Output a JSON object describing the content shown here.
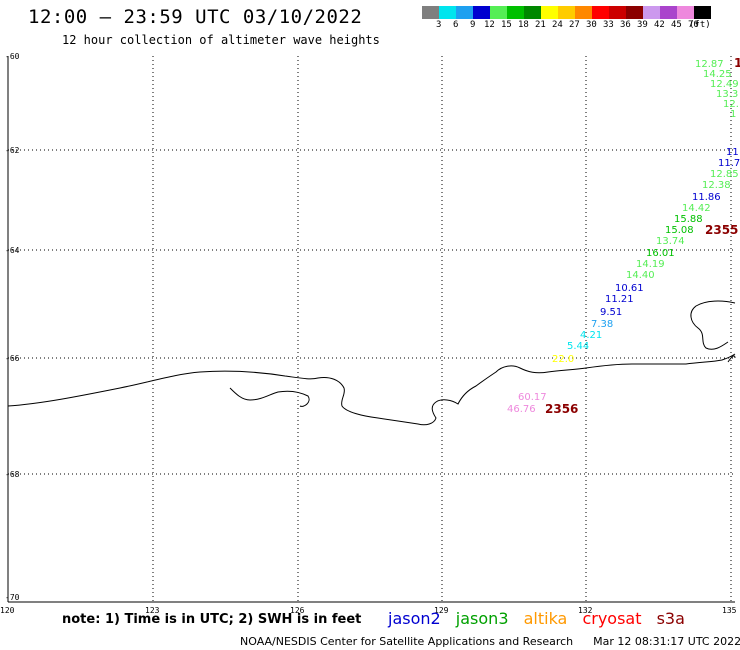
{
  "title": "12:00 – 23:59 UTC 03/10/2022",
  "subtitle": "12 hour collection of altimeter wave heights",
  "legend": {
    "unit_label": "(ft)",
    "bins": [
      {
        "label": "3",
        "color": "#7f7f7f"
      },
      {
        "label": "6",
        "color": "#00e5ee"
      },
      {
        "label": "9",
        "color": "#1ea0f0"
      },
      {
        "label": "12",
        "color": "#0000d0"
      },
      {
        "label": "15",
        "color": "#55ee55"
      },
      {
        "label": "18",
        "color": "#00c000"
      },
      {
        "label": "21",
        "color": "#008800"
      },
      {
        "label": "24",
        "color": "#ffff00"
      },
      {
        "label": "27",
        "color": "#ffcc00"
      },
      {
        "label": "30",
        "color": "#ff8800"
      },
      {
        "label": "33",
        "color": "#ff0000"
      },
      {
        "label": "36",
        "color": "#cc0000"
      },
      {
        "label": "39",
        "color": "#8b0000"
      },
      {
        "label": "42",
        "color": "#cc99ee"
      },
      {
        "label": "45",
        "color": "#aa44cc"
      },
      {
        "label": "70",
        "color": "#ee88dd"
      },
      {
        "label": "",
        "color": "#000000"
      }
    ]
  },
  "axes": {
    "lat_labels": [
      "-60",
      "-62",
      "-64",
      "-66",
      "-68",
      "-70"
    ],
    "lon_labels": [
      "120",
      "123",
      "126",
      "129",
      "132",
      "135"
    ]
  },
  "wave_heights": [
    {
      "value": "12.87",
      "color": "#55ee55"
    },
    {
      "value": "14.25",
      "color": "#55ee55"
    },
    {
      "value": "12.49",
      "color": "#55ee55"
    },
    {
      "value": "13.3",
      "color": "#55ee55"
    },
    {
      "value": "12.",
      "color": "#55ee55"
    },
    {
      "value": "1",
      "color": "#55ee55"
    },
    {
      "value": "11",
      "color": "#0000d0"
    },
    {
      "value": "11.7",
      "color": "#0000d0"
    },
    {
      "value": "12.85",
      "color": "#55ee55"
    },
    {
      "value": "12.38",
      "color": "#55ee55"
    },
    {
      "value": "11.86",
      "color": "#0000d0"
    },
    {
      "value": "14.42",
      "color": "#55ee55"
    },
    {
      "value": "15.88",
      "color": "#00c000"
    },
    {
      "value": "15.08",
      "color": "#00c000"
    },
    {
      "value": "13.74",
      "color": "#55ee55"
    },
    {
      "value": "16.01",
      "color": "#00c000"
    },
    {
      "value": "14.19",
      "color": "#55ee55"
    },
    {
      "value": "14.40",
      "color": "#55ee55"
    },
    {
      "value": "10.61",
      "color": "#0000d0"
    },
    {
      "value": "11.21",
      "color": "#0000d0"
    },
    {
      "value": "9.51",
      "color": "#0000d0"
    },
    {
      "value": "7.38",
      "color": "#1ea0f0"
    },
    {
      "value": "4.21",
      "color": "#00e5ee"
    },
    {
      "value": "5.44",
      "color": "#00e5ee"
    },
    {
      "value": "22.0",
      "color": "#ffff00"
    },
    {
      "value": "60.17",
      "color": "#ee88dd"
    },
    {
      "value": "46.76",
      "color": "#ee88dd"
    }
  ],
  "pass_times": [
    {
      "value": "1",
      "color": "#8b0000"
    },
    {
      "value": "2355",
      "color": "#8b0000"
    },
    {
      "value": "2356",
      "color": "#8b0000"
    }
  ],
  "note": "note: 1) Time is in UTC; 2) SWH is in feet",
  "satellites": [
    {
      "name": "jason2",
      "color": "#0000d0"
    },
    {
      "name": "jason3",
      "color": "#00a000"
    },
    {
      "name": "altika",
      "color": "#ff9900"
    },
    {
      "name": "cryosat",
      "color": "#ff0000"
    },
    {
      "name": "s3a",
      "color": "#8b0000"
    }
  ],
  "credit": "NOAA/NESDIS Center for Satellite Applications and Research",
  "timestamp": "Mar 12 08:31:17 UTC 2022"
}
